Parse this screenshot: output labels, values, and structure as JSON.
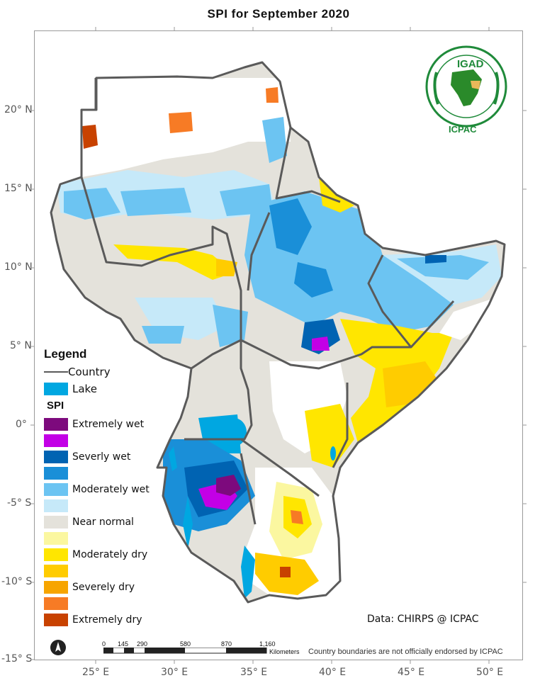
{
  "title": "SPI for  September 2020",
  "y_axis_labels": [
    "20° N",
    "15° N",
    "10° N",
    "5° N",
    "0°",
    "-5° S",
    "-10° S",
    "-15° S"
  ],
  "x_axis_labels": [
    "25° E",
    "30° E",
    "35° E",
    "40° E",
    "45° E",
    "50° E"
  ],
  "legend": {
    "title": "Legend",
    "country_label": "Country",
    "lake_label": "Lake",
    "spi_title": "SPI",
    "lake_color": "#00a7e1",
    "classes": [
      {
        "label": "Extremely wet",
        "color": "#7d0a7d"
      },
      {
        "label": "",
        "color": "#c300e6"
      },
      {
        "label": "Severly wet",
        "color": "#0063b2"
      },
      {
        "label": "",
        "color": "#1a8fd8"
      },
      {
        "label": "Moderately wet",
        "color": "#6cc4f2"
      },
      {
        "label": "",
        "color": "#c6e9f9"
      },
      {
        "label": "Near normal",
        "color": "#e4e2db"
      },
      {
        "label": "",
        "color": "#fbf7a0"
      },
      {
        "label": "Moderately dry",
        "color": "#ffe600"
      },
      {
        "label": "",
        "color": "#ffcc00"
      },
      {
        "label": "Severely dry",
        "color": "#f7a500"
      },
      {
        "label": "",
        "color": "#f77b25"
      },
      {
        "label": "Extremely dry",
        "color": "#c84200"
      }
    ]
  },
  "logo": {
    "igad": "IGAD",
    "icpac": "ICPAC",
    "seal_name": "igad-icpac-seal"
  },
  "credit": "Data: CHIRPS @ ICPAC",
  "disclaimer": "Country boundaries are not officially endorsed by ICPAC",
  "scale_bar": {
    "ticks": [
      "0",
      "145",
      "290",
      "580",
      "870",
      "1,160"
    ],
    "unit": "Kilometers"
  },
  "north_arrow": "north-arrow-icon"
}
